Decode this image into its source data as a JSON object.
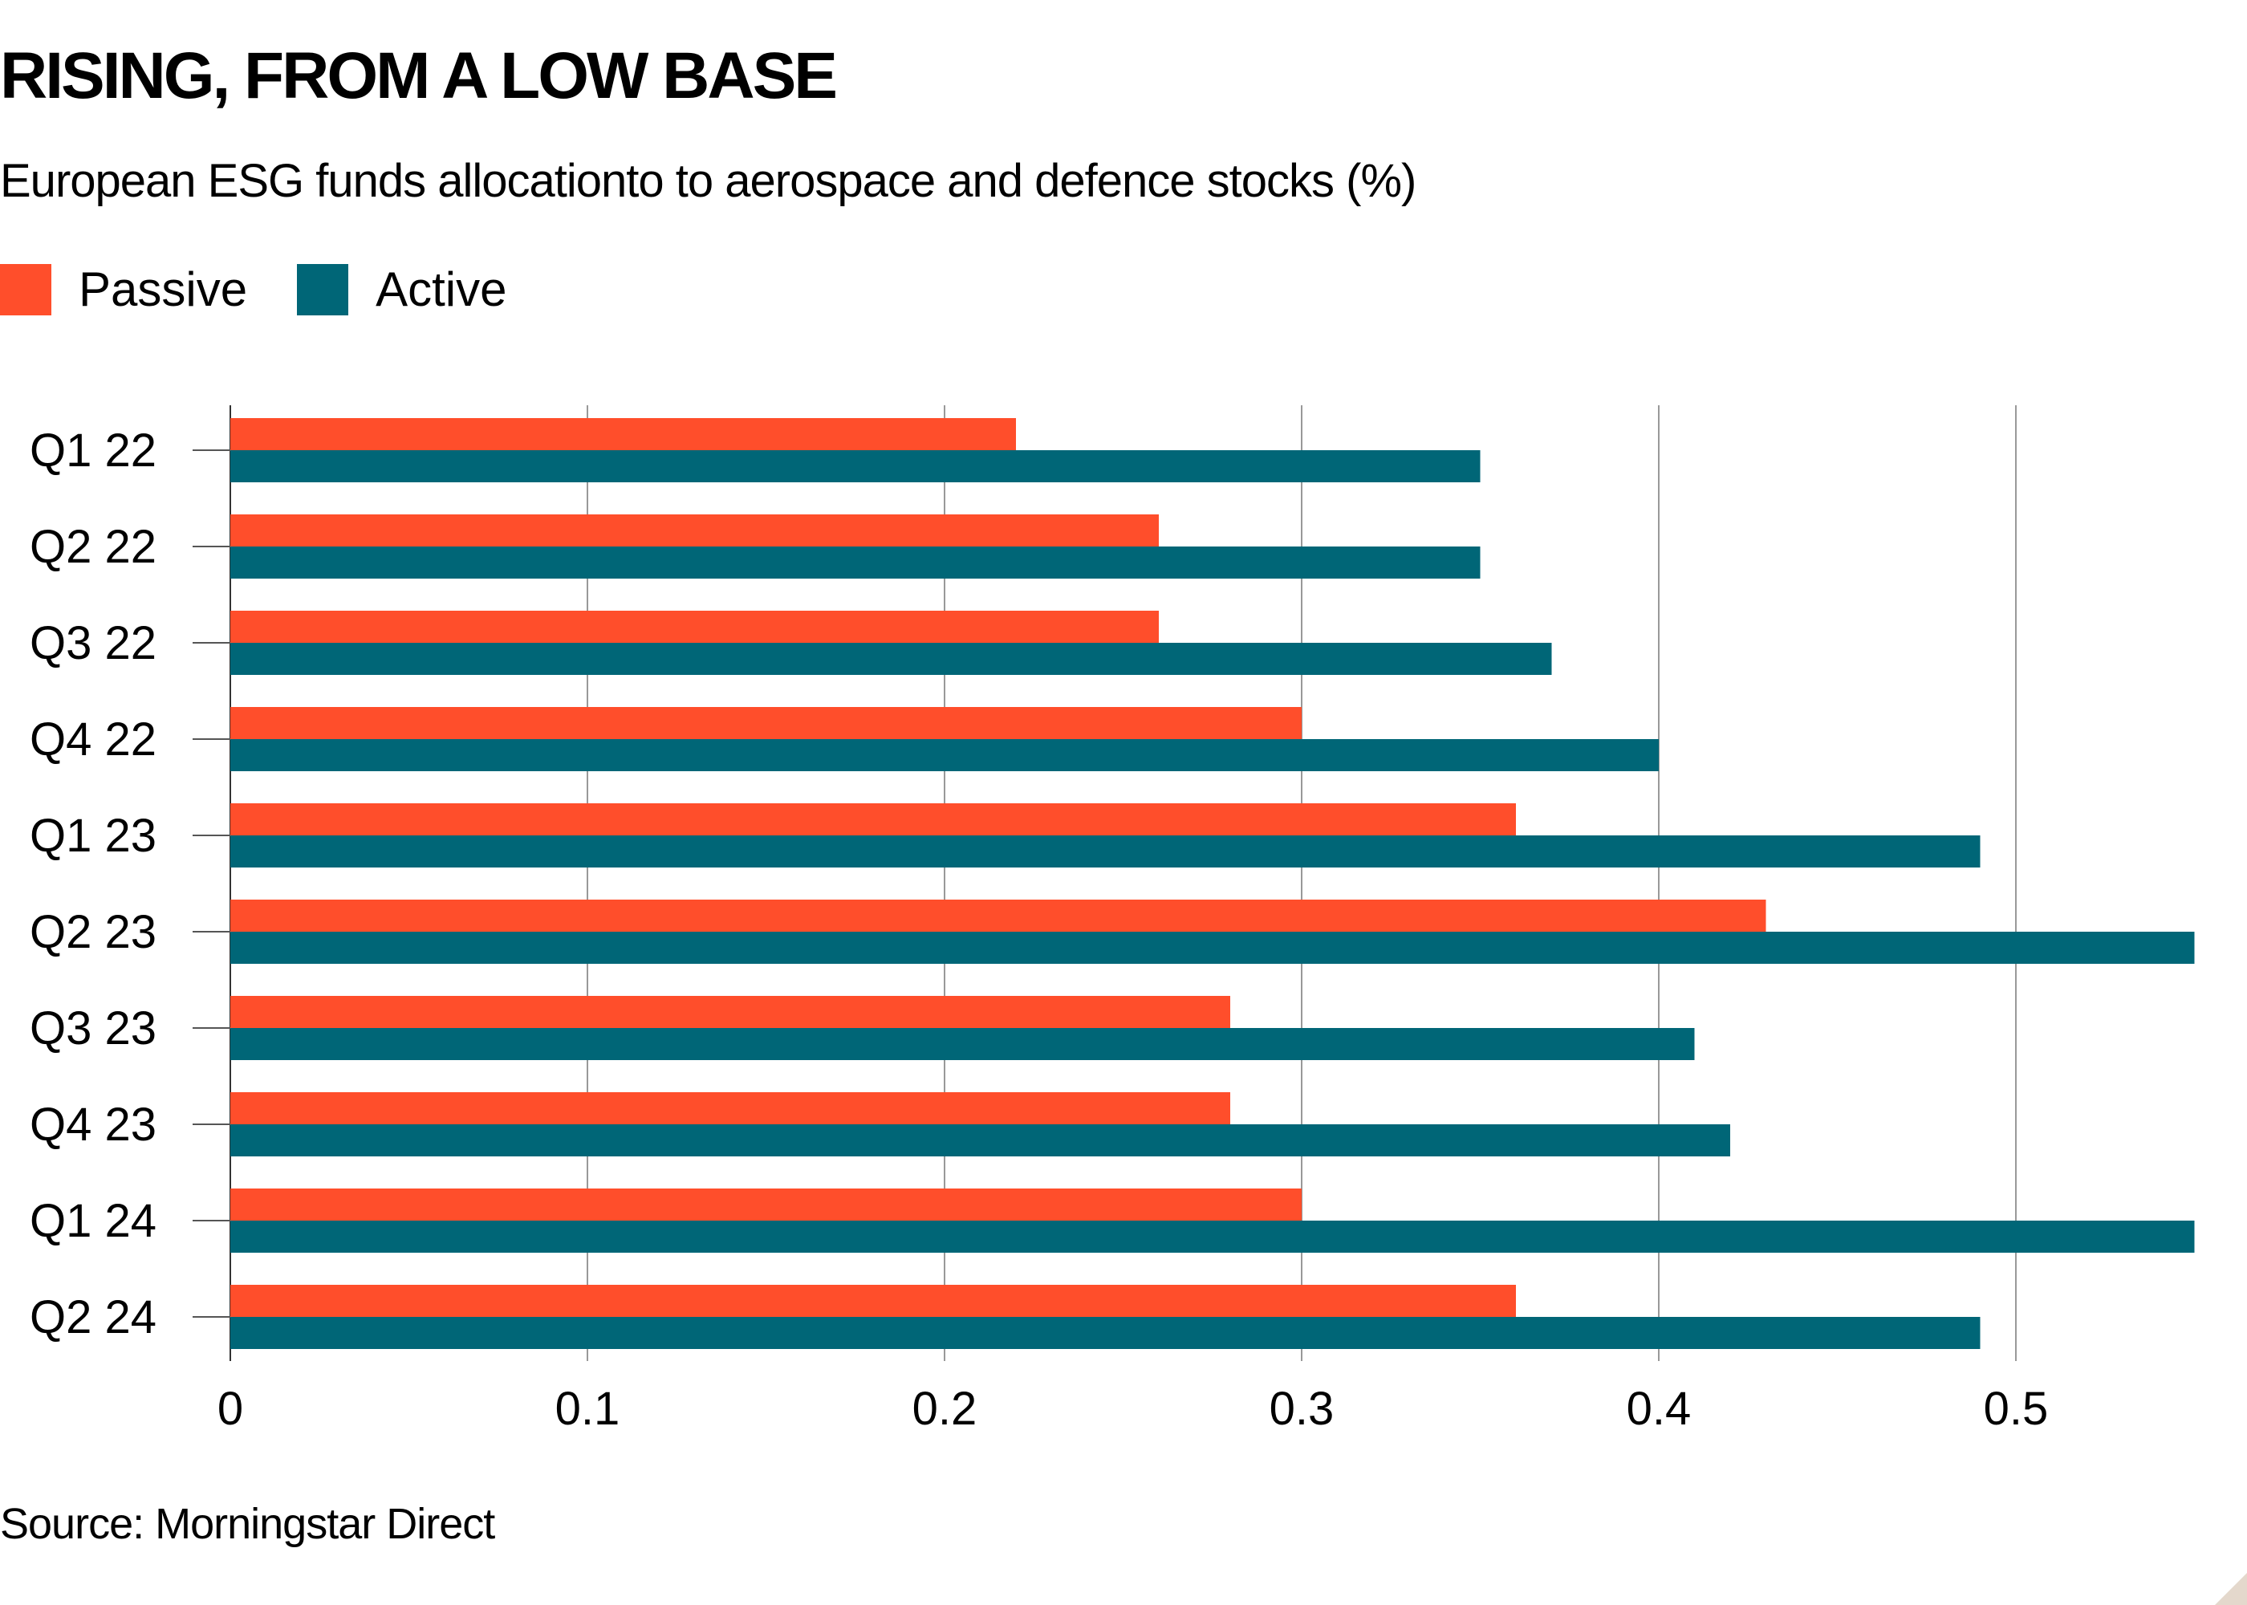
{
  "chart_data": {
    "type": "bar",
    "orientation": "horizontal",
    "title": "RISING, FROM A LOW BASE",
    "subtitle": "European ESG funds allocationto to aerospace and defence stocks (%)",
    "categories": [
      "Q1 22",
      "Q2 22",
      "Q3 22",
      "Q4 22",
      "Q1 23",
      "Q2 23",
      "Q3 23",
      "Q4 23",
      "Q1 24",
      "Q2 24"
    ],
    "series": [
      {
        "name": "Passive",
        "color": "#ff4e2b",
        "values": [
          0.22,
          0.26,
          0.26,
          0.3,
          0.36,
          0.43,
          0.28,
          0.28,
          0.3,
          0.36
        ]
      },
      {
        "name": "Active",
        "color": "#006677",
        "values": [
          0.35,
          0.35,
          0.37,
          0.4,
          0.49,
          0.55,
          0.41,
          0.42,
          0.55,
          0.49
        ]
      }
    ],
    "xticks": [
      "0",
      "0.1",
      "0.2",
      "0.3",
      "0.4",
      "0.5"
    ],
    "xlim": [
      0,
      0.55
    ],
    "grid": true,
    "legend": "top-left",
    "source": "Source: Morningstar Direct"
  }
}
